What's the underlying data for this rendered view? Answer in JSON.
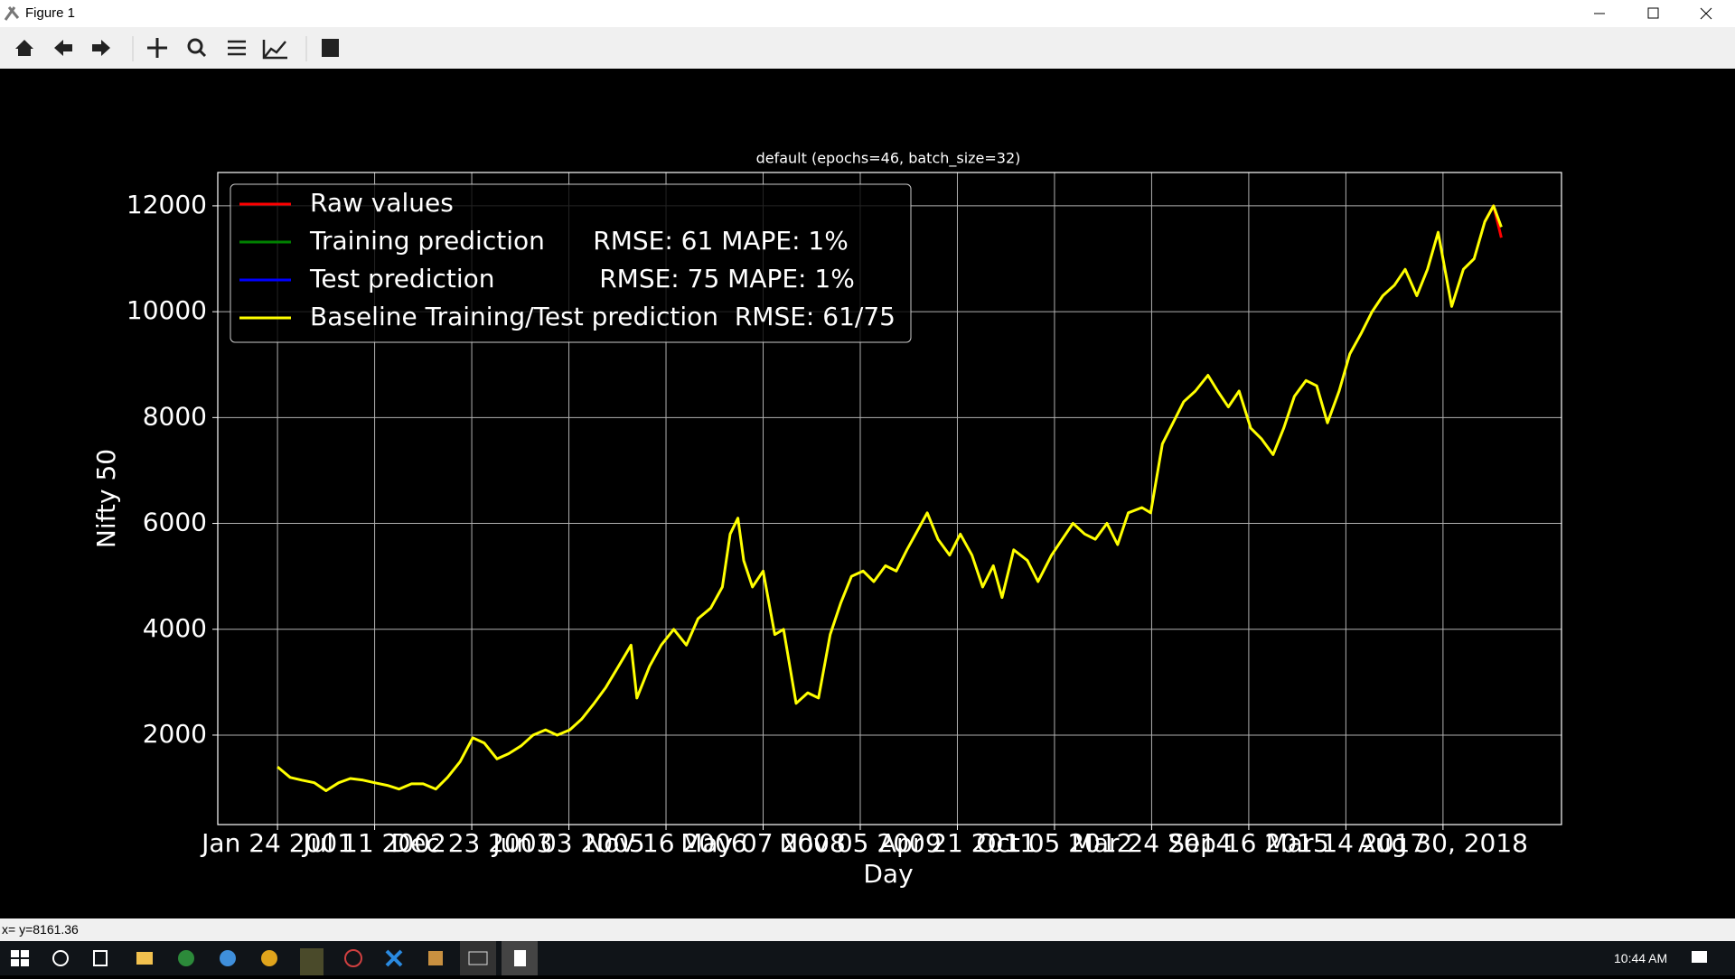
{
  "window": {
    "title": "Figure 1"
  },
  "status": "x= y=8161.36",
  "taskbar": {
    "time": "10:44 AM"
  },
  "chart_data": {
    "type": "line",
    "title": "default (epochs=46, batch_size=32)",
    "x_label": "Day",
    "y_label": "Nifty 50",
    "xlim": [
      -0.615,
      13.22
    ],
    "ylim": [
      310,
      12630
    ],
    "xticks": [
      {
        "value": 0,
        "label": "Jan 24 2001"
      },
      {
        "value": 1,
        "label": "Jul 11 2002"
      },
      {
        "value": 2,
        "label": "Dec 23 2003"
      },
      {
        "value": 3,
        "label": "Jun 03 2005"
      },
      {
        "value": 4,
        "label": "Nov 16 2006"
      },
      {
        "value": 5,
        "label": "May 07 2008"
      },
      {
        "value": 6,
        "label": "Nov 05 2009"
      },
      {
        "value": 7,
        "label": "Apr 21 2011"
      },
      {
        "value": 8,
        "label": "Oct 05 2012"
      },
      {
        "value": 9,
        "label": "Mar 24 2014"
      },
      {
        "value": 10,
        "label": "Sep 16 2015"
      },
      {
        "value": 11,
        "label": "Mar 14 2017"
      },
      {
        "value": 12,
        "label": "Aug 30, 2018"
      }
    ],
    "yticks": [
      2000,
      4000,
      6000,
      8000,
      10000,
      12000
    ],
    "grid": true,
    "legend": "upper left",
    "x": [
      0,
      0.13,
      0.25,
      0.38,
      0.5,
      0.63,
      0.75,
      0.88,
      1.0,
      1.13,
      1.25,
      1.38,
      1.5,
      1.63,
      1.75,
      1.88,
      2.01,
      2.13,
      2.26,
      2.38,
      2.51,
      2.63,
      2.76,
      2.88,
      3.01,
      3.13,
      3.26,
      3.38,
      3.51,
      3.64,
      3.7,
      3.83,
      3.95,
      4.08,
      4.21,
      4.33,
      4.46,
      4.58,
      4.66,
      4.74,
      4.8,
      4.89,
      5.0,
      5.12,
      5.21,
      5.34,
      5.46,
      5.57,
      5.69,
      5.8,
      5.91,
      6.03,
      6.14,
      6.26,
      6.37,
      6.48,
      6.6,
      6.69,
      6.8,
      6.92,
      7.03,
      7.15,
      7.26,
      7.37,
      7.46,
      7.58,
      7.72,
      7.83,
      7.97,
      8.08,
      8.19,
      8.31,
      8.42,
      8.54,
      8.65,
      8.76,
      8.9,
      8.99,
      9.11,
      9.22,
      9.33,
      9.45,
      9.58,
      9.68,
      9.79,
      9.9,
      10.02,
      10.13,
      10.25,
      10.36,
      10.47,
      10.59,
      10.7,
      10.81,
      10.93,
      11.04,
      11.16,
      11.27,
      11.38,
      11.5,
      11.61,
      11.73,
      11.84,
      11.95,
      12.02,
      12.09,
      12.21,
      12.32,
      12.43,
      12.52,
      12.6
    ],
    "series": [
      {
        "name": "Raw values",
        "color": "#ff0000",
        "values": [
          null,
          null,
          null,
          null,
          null,
          null,
          null,
          null,
          null,
          null,
          null,
          null,
          null,
          null,
          null,
          null,
          null,
          null,
          null,
          null,
          null,
          null,
          null,
          null,
          null,
          null,
          null,
          null,
          null,
          null,
          null,
          null,
          null,
          null,
          null,
          null,
          null,
          null,
          null,
          null,
          null,
          null,
          null,
          null,
          null,
          null,
          null,
          null,
          null,
          null,
          null,
          null,
          null,
          null,
          null,
          null,
          null,
          null,
          null,
          null,
          null,
          null,
          null,
          null,
          null,
          null,
          null,
          null,
          null,
          null,
          null,
          null,
          null,
          null,
          null,
          null,
          null,
          null,
          null,
          null,
          null,
          null,
          null,
          null,
          null,
          null,
          null,
          null,
          null,
          null,
          null,
          null,
          null,
          null,
          null,
          null,
          null,
          null,
          null,
          null,
          null,
          null,
          null,
          null,
          null,
          null,
          null,
          null,
          11700,
          12000,
          11400
        ]
      },
      {
        "name": "Training prediction      RMSE: 61 MAPE: 1%",
        "color": "#008000",
        "values": [
          null,
          null,
          null,
          null,
          null,
          null,
          null,
          null,
          null,
          null,
          null,
          null,
          null,
          null,
          null,
          null,
          null,
          null,
          null,
          null,
          null,
          null,
          null,
          null,
          null,
          null,
          null,
          null,
          null,
          null,
          null,
          null,
          null,
          null,
          null,
          null,
          null,
          null,
          null,
          null,
          null,
          null,
          null,
          null,
          null,
          null,
          null,
          null,
          null,
          null,
          null,
          null,
          null,
          null,
          null,
          null,
          null,
          null,
          null,
          null,
          null,
          null,
          null,
          null,
          null,
          null,
          null,
          null,
          null,
          null,
          null,
          null,
          null,
          null,
          null,
          null,
          null,
          null,
          null,
          null,
          null,
          null,
          null,
          null,
          null,
          null,
          null,
          null,
          null,
          null,
          null,
          null,
          null,
          null,
          null,
          null,
          null,
          null,
          null,
          null,
          null,
          null,
          null,
          null,
          null,
          null,
          null,
          null,
          null,
          null,
          null
        ]
      },
      {
        "name": "Test prediction             RMSE: 75 MAPE: 1%",
        "color": "#0000ff",
        "values": [
          null,
          null,
          null,
          null,
          null,
          null,
          null,
          null,
          null,
          null,
          null,
          null,
          null,
          null,
          null,
          null,
          null,
          null,
          null,
          null,
          null,
          null,
          null,
          null,
          null,
          null,
          null,
          null,
          null,
          null,
          null,
          null,
          null,
          null,
          null,
          null,
          null,
          null,
          null,
          null,
          null,
          null,
          null,
          null,
          null,
          null,
          null,
          null,
          null,
          null,
          null,
          null,
          null,
          null,
          null,
          null,
          null,
          null,
          null,
          null,
          null,
          null,
          null,
          null,
          null,
          null,
          null,
          null,
          null,
          null,
          null,
          null,
          null,
          null,
          null,
          null,
          null,
          null,
          null,
          null,
          null,
          null,
          null,
          null,
          null,
          null,
          null,
          null,
          null,
          null,
          null,
          null,
          null,
          null,
          null,
          null,
          null,
          null,
          null,
          null,
          null,
          null,
          null,
          null,
          null,
          null,
          null,
          null,
          null,
          null,
          null
        ]
      },
      {
        "name": "Baseline Training/Test prediction  RMSE: 61/75",
        "color": "#ffff00",
        "values": [
          1400,
          1200,
          1150,
          1100,
          950,
          1100,
          1180,
          1150,
          1100,
          1050,
          980,
          1080,
          1080,
          980,
          1200,
          1500,
          1950,
          1850,
          1550,
          1650,
          1800,
          2000,
          2100,
          2000,
          2100,
          2300,
          2600,
          2900,
          3300,
          3700,
          2700,
          3300,
          3700,
          4000,
          3700,
          4200,
          4400,
          4800,
          5800,
          6100,
          5300,
          4800,
          5100,
          3900,
          4000,
          2600,
          2800,
          2700,
          3900,
          4500,
          5000,
          5100,
          4900,
          5200,
          5100,
          5500,
          5900,
          6200,
          5700,
          5400,
          5800,
          5400,
          4800,
          5200,
          4600,
          5500,
          5300,
          4900,
          5400,
          5700,
          6000,
          5800,
          5700,
          6000,
          5600,
          6200,
          6300,
          6200,
          7500,
          7900,
          8300,
          8500,
          8800,
          8500,
          8200,
          8500,
          7800,
          7600,
          7300,
          7800,
          8400,
          8700,
          8600,
          7900,
          8500,
          9200,
          9600,
          10000,
          10300,
          10500,
          10800,
          10300,
          10800,
          11500,
          10800,
          10100,
          10800,
          11000,
          11700,
          12000,
          11600
        ]
      }
    ]
  }
}
